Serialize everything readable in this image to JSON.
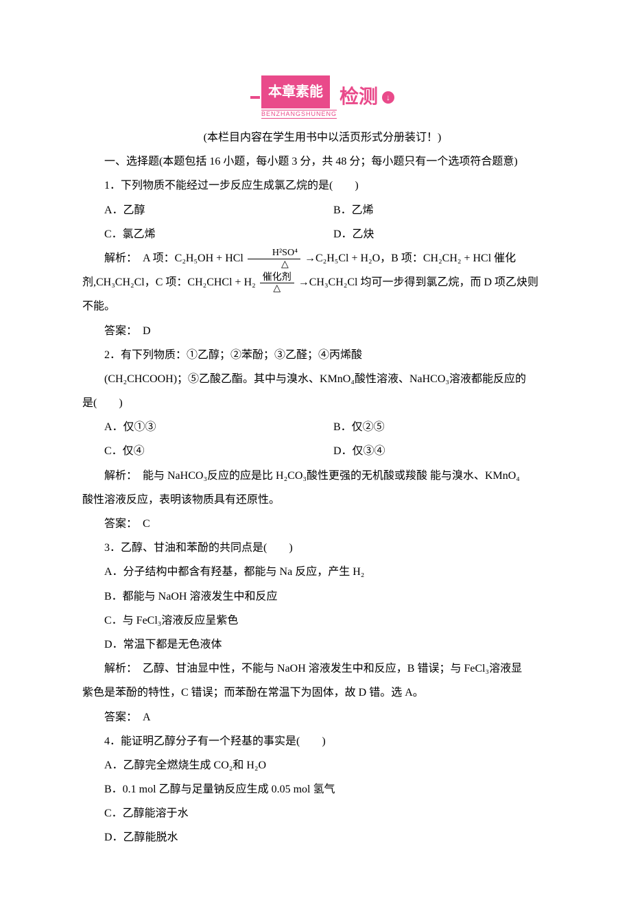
{
  "banner": {
    "title": "本章素能",
    "pinyin": "BENZHANGSHUNENG",
    "right": "检测",
    "circle": "↓",
    "color": "#e94a8a"
  },
  "note": "(本栏目内容在学生用书中以活页形式分册装订！)",
  "section1": "一、选择题(本题包括 16 小题，每小题 3 分，共 48 分；每小题只有一个选项符合题意)",
  "q1": {
    "stem": "1．下列物质不能经过一步反应生成氯乙烷的是(　　)",
    "A": "A．乙醇",
    "B": "B．乙烯",
    "C": "C．氯乙烯",
    "D": "D．乙炔",
    "explain_pre": "解析：　A 项：C₂H₅OH + HCl ",
    "frac1_top": "H²SO⁴",
    "frac1_bot": "△",
    "explain_mid1": "→C₂H₅Cl + H₂O，B 项：CH₂CH₂ + HCl 催化",
    "explain_line2_pre": "剂,CH₃CH₂Cl，C 项：CH₂CHCl + H₂ ",
    "frac2_top": "催化剂",
    "frac2_bot": "△",
    "explain_line2_post": "→CH₃CH₂Cl 均可一步得到氯乙烷，而 D 项乙炔则",
    "explain_line3": "不能。",
    "answer": "答案：　D"
  },
  "q2": {
    "stem1": "2．有下列物质：①乙醇；②苯酚；③乙醛；④丙烯酸",
    "stem2": "(CH₂CHCOOH)；⑤乙酸乙酯。其中与溴水、KMnO₄酸性溶液、NaHCO₃溶液都能反应的",
    "stem3": "是(　　)",
    "A": "A．仅①③",
    "B": "B．仅②⑤",
    "C": "C．仅④",
    "D": "D．仅③④",
    "explain": "解析：　能与 NaHCO₃反应的应是比 H₂CO₃酸性更强的无机酸或羧酸 能与溴水、KMnO₄",
    "explain2": "酸性溶液反应，表明该物质具有还原性。",
    "answer": "答案：　C"
  },
  "q3": {
    "stem": "3．乙醇、甘油和苯酚的共同点是(　　)",
    "A": "A．分子结构中都含有羟基，都能与 Na 反应，产生 H₂",
    "B": "B．都能与 NaOH 溶液发生中和反应",
    "C": "C．与 FeCl₃溶液反应呈紫色",
    "D": "D．常温下都是无色液体",
    "explain": "解析：　乙醇、甘油显中性，不能与 NaOH 溶液发生中和反应，B 错误；与 FeCl₃溶液显",
    "explain2": "紫色是苯酚的特性，C 错误；而苯酚在常温下为固体，故 D 错。选 A。",
    "answer": "答案：　A"
  },
  "q4": {
    "stem": "4．能证明乙醇分子有一个羟基的事实是(　　)",
    "A": "A．乙醇完全燃烧生成 CO₂和 H₂O",
    "B": "B．0.1 mol 乙醇与足量钠反应生成 0.05 mol 氢气",
    "C": "C．乙醇能溶于水",
    "D": "D．乙醇能脱水"
  }
}
